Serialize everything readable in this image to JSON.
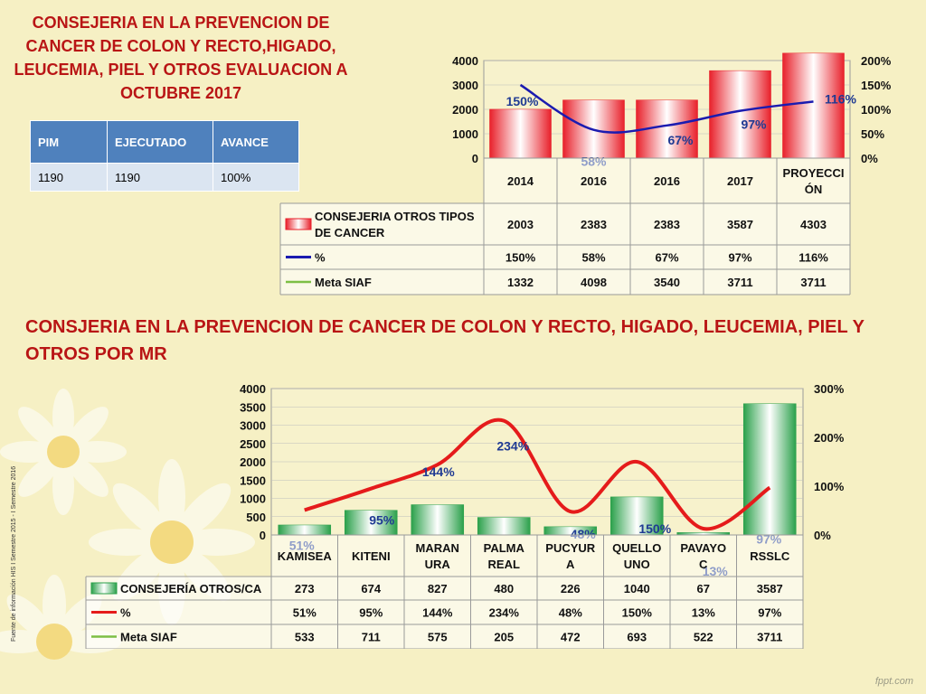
{
  "slide": {
    "title1": "CONSEJERIA EN LA PREVENCION DE CANCER DE COLON Y RECTO,HIGADO, LEUCEMIA, PIEL Y OTROS EVALUACION A OCTUBRE 2017",
    "title2": "CONSJERIA EN LA PREVENCION DE CANCER DE COLON Y RECTO, HIGADO, LEUCEMIA, PIEL Y OTROS POR MR",
    "side_note": "Fuente de información HIS I Semestre 2015 - I Semestre 2016",
    "watermark": "fppt.com"
  },
  "summary_table": {
    "headers": [
      "PIM",
      "EJECUTADO",
      "AVANCE"
    ],
    "row": [
      "1190",
      "1190",
      "100%"
    ]
  },
  "chart_data": [
    {
      "type": "bar",
      "categories": [
        "2014",
        "2016",
        "2016",
        "2017",
        "PROYECCIÓN"
      ],
      "series": [
        {
          "name": "CONSEJERIA OTROS TIPOS DE CANCER",
          "type": "bar",
          "values": [
            2003,
            2383,
            2383,
            3587,
            4303
          ],
          "color": "#e8202a"
        },
        {
          "name": "%",
          "type": "line",
          "axis": "right",
          "values": [
            150,
            58,
            67,
            97,
            116
          ],
          "labels": [
            "150%",
            "58%",
            "67%",
            "97%",
            "116%"
          ],
          "color": "#1b1bb0"
        },
        {
          "name": "Meta SIAF",
          "type": "line",
          "values": [
            1332,
            4098,
            3540,
            3711,
            3711
          ],
          "color": "#7dbf45"
        }
      ],
      "ylim": [
        0,
        4000
      ],
      "yticks": [
        "0",
        "1000",
        "2000",
        "3000",
        "4000"
      ],
      "y2lim": [
        0,
        200
      ],
      "y2ticks": [
        "0%",
        "50%",
        "100%",
        "150%",
        "200%"
      ],
      "table_rows": [
        [
          "2003",
          "2383",
          "2383",
          "3587",
          "4303"
        ],
        [
          "150%",
          "58%",
          "67%",
          "97%",
          "116%"
        ],
        [
          "1332",
          "4098",
          "3540",
          "3711",
          "3711"
        ]
      ],
      "cat_labels": [
        [
          "2014"
        ],
        [
          "2016"
        ],
        [
          "2016"
        ],
        [
          "2017"
        ],
        [
          "PROYECCI",
          "ÓN"
        ]
      ],
      "legend_labels": [
        [
          "CONSEJERIA OTROS TIPOS",
          "DE CANCER"
        ],
        [
          "%"
        ],
        [
          "Meta SIAF"
        ]
      ],
      "grid": true,
      "legend": "data table"
    },
    {
      "type": "bar",
      "categories": [
        "KAMISEA",
        "KITENI",
        "MARANURA",
        "PALMA REAL",
        "PUCYURA",
        "QUELLOUNO",
        "PAVAYOC",
        "RSSLC"
      ],
      "series": [
        {
          "name": "CONSEJERÍA OTROS/CA",
          "type": "bar",
          "values": [
            273,
            674,
            827,
            480,
            226,
            1040,
            67,
            3587
          ],
          "color": "#2aa04a"
        },
        {
          "name": "%",
          "type": "line",
          "axis": "right",
          "values": [
            51,
            95,
            144,
            234,
            48,
            150,
            13,
            97
          ],
          "labels": [
            "51%",
            "95%",
            "144%",
            "234%",
            "48%",
            "150%",
            "13%",
            "97%"
          ],
          "color": "#e51b1b"
        },
        {
          "name": "Meta SIAF",
          "type": "line",
          "values": [
            533,
            711,
            575,
            205,
            472,
            693,
            522,
            3711
          ],
          "color": "#7dbf45"
        }
      ],
      "ylim": [
        0,
        4000
      ],
      "yticks": [
        "0",
        "500",
        "1000",
        "1500",
        "2000",
        "2500",
        "3000",
        "3500",
        "4000"
      ],
      "y2lim": [
        0,
        300
      ],
      "y2ticks": [
        "0%",
        "100%",
        "200%",
        "300%"
      ],
      "table_rows": [
        [
          "273",
          "674",
          "827",
          "480",
          "226",
          "1040",
          "67",
          "3587"
        ],
        [
          "51%",
          "95%",
          "144%",
          "234%",
          "48%",
          "150%",
          "13%",
          "97%"
        ],
        [
          "533",
          "711",
          "575",
          "205",
          "472",
          "693",
          "522",
          "3711"
        ]
      ],
      "cat_labels": [
        [
          "KAMISEA"
        ],
        [
          "KITENI"
        ],
        [
          "MARAN",
          "URA"
        ],
        [
          "PALMA",
          "REAL"
        ],
        [
          "PUCYUR",
          "A"
        ],
        [
          "QUELLO",
          "UNO"
        ],
        [
          "PAVAYO",
          "C"
        ],
        [
          "RSSLC"
        ]
      ],
      "legend_labels": [
        [
          "CONSEJERÍA OTROS/CA"
        ],
        [
          "%"
        ],
        [
          "Meta SIAF"
        ]
      ],
      "grid": true,
      "legend": "data table"
    }
  ]
}
